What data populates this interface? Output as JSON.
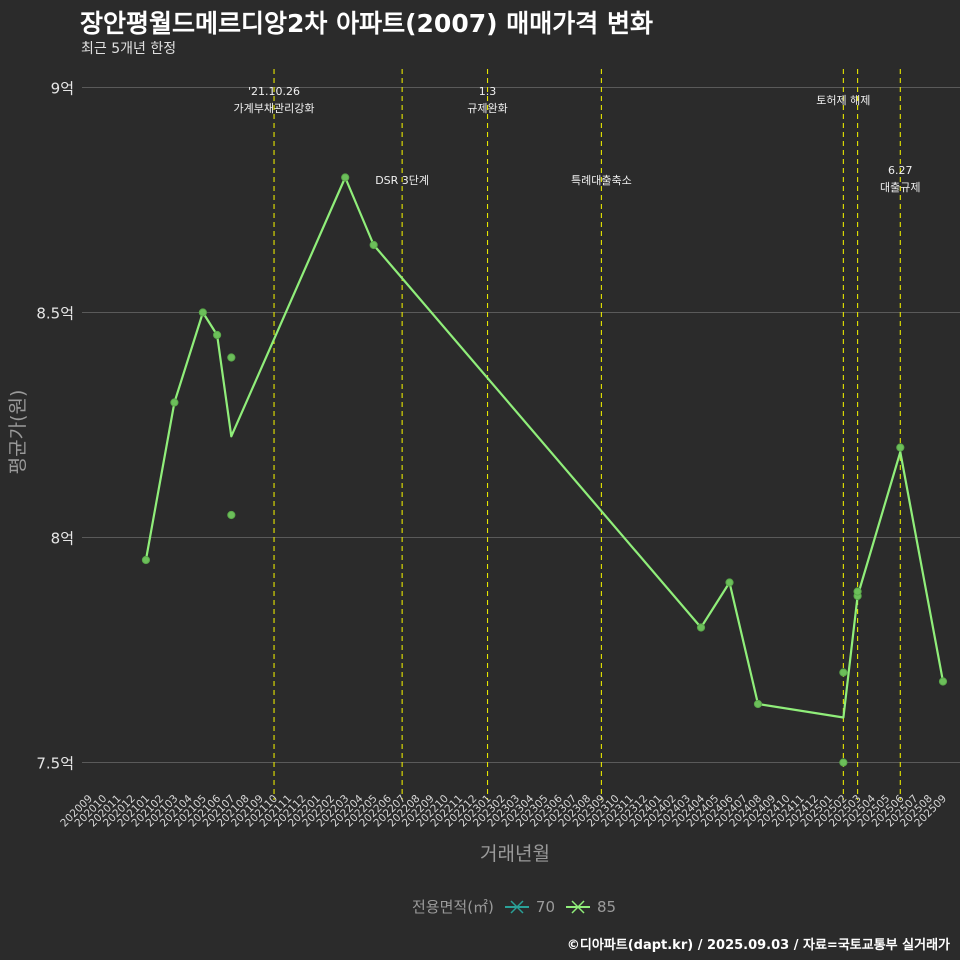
{
  "title": "장안평월드메르디앙2차 아파트(2007) 매매가격 변화",
  "subtitle": "최근 5개년 한정",
  "caption": "©디아파트(dapt.kr) / 2025.09.03 / 자료=국토교통부 실거래가",
  "colors": {
    "background": "#2b2b2b",
    "line85": "#90ee7a",
    "line70": "#2aa198",
    "vline": "#e6e600",
    "grid": "#5a5a5a"
  },
  "chart_data": {
    "type": "line",
    "xlabel": "거래년월",
    "ylabel": "평균가(원)",
    "ylim": [
      7.45,
      9.05
    ],
    "yticks": [
      {
        "v": 7.5,
        "label": "7.5억"
      },
      {
        "v": 8.0,
        "label": "8억"
      },
      {
        "v": 8.5,
        "label": "8.5억"
      },
      {
        "v": 9.0,
        "label": "9억"
      }
    ],
    "categories": [
      "202009",
      "202010",
      "202011",
      "202012",
      "202101",
      "202102",
      "202103",
      "202104",
      "202105",
      "202106",
      "202107",
      "202108",
      "202109",
      "202110",
      "202111",
      "202112",
      "202201",
      "202202",
      "202203",
      "202204",
      "202205",
      "202206",
      "202207",
      "202208",
      "202209",
      "202210",
      "202211",
      "202212",
      "202301",
      "202302",
      "202303",
      "202304",
      "202305",
      "202306",
      "202307",
      "202308",
      "202309",
      "202310",
      "202311",
      "202312",
      "202401",
      "202402",
      "202403",
      "202404",
      "202405",
      "202406",
      "202407",
      "202408",
      "202409",
      "202410",
      "202411",
      "202412",
      "202501",
      "202502",
      "202503",
      "202504",
      "202505",
      "202506",
      "202507",
      "202508",
      "202509"
    ],
    "series": [
      {
        "name": "85",
        "line": [
          {
            "x": "202101",
            "y": 7.95
          },
          {
            "x": "202103",
            "y": 8.3
          },
          {
            "x": "202105",
            "y": 8.5
          },
          {
            "x": "202106",
            "y": 8.45
          },
          {
            "x": "202107",
            "y": 8.225
          },
          {
            "x": "202203",
            "y": 8.8
          },
          {
            "x": "202205",
            "y": 8.65
          },
          {
            "x": "202404",
            "y": 7.8
          },
          {
            "x": "202406",
            "y": 7.9
          },
          {
            "x": "202408",
            "y": 7.63
          },
          {
            "x": "202502",
            "y": 7.6
          },
          {
            "x": "202503",
            "y": 7.87
          },
          {
            "x": "202506",
            "y": 8.19
          },
          {
            "x": "202509",
            "y": 7.68
          }
        ],
        "points": [
          {
            "x": "202101",
            "y": 7.95
          },
          {
            "x": "202103",
            "y": 8.3
          },
          {
            "x": "202105",
            "y": 8.5
          },
          {
            "x": "202106",
            "y": 8.45
          },
          {
            "x": "202107",
            "y": 8.4
          },
          {
            "x": "202107",
            "y": 8.05
          },
          {
            "x": "202203",
            "y": 8.8
          },
          {
            "x": "202205",
            "y": 8.65
          },
          {
            "x": "202404",
            "y": 7.8
          },
          {
            "x": "202406",
            "y": 7.9
          },
          {
            "x": "202408",
            "y": 7.63
          },
          {
            "x": "202502",
            "y": 7.7
          },
          {
            "x": "202502",
            "y": 7.5
          },
          {
            "x": "202503",
            "y": 7.87
          },
          {
            "x": "202503",
            "y": 7.88
          },
          {
            "x": "202506",
            "y": 8.2
          },
          {
            "x": "202509",
            "y": 7.68
          }
        ]
      },
      {
        "name": "70",
        "line": [],
        "points": []
      }
    ],
    "events": [
      {
        "x": "202110",
        "lines": [
          "'21.10.26",
          "가계부채관리강화"
        ],
        "pos": "top"
      },
      {
        "x": "202207",
        "lines": [
          "DSR 3단계"
        ],
        "pos": "mid"
      },
      {
        "x": "202301",
        "lines": [
          "1.3",
          "규제완화"
        ],
        "pos": "top"
      },
      {
        "x": "202309",
        "lines": [
          "특례대출축소"
        ],
        "pos": "mid"
      },
      {
        "x": "202502",
        "lines": [
          "토허제 해제"
        ],
        "pos": "top2"
      },
      {
        "x": "202503",
        "lines": [],
        "pos": "none"
      },
      {
        "x": "202506",
        "lines": [
          "6.27",
          "대출규제"
        ],
        "pos": "mid2"
      }
    ],
    "legend": {
      "title": "전용면적(㎡)",
      "items": [
        "70",
        "85"
      ]
    }
  }
}
